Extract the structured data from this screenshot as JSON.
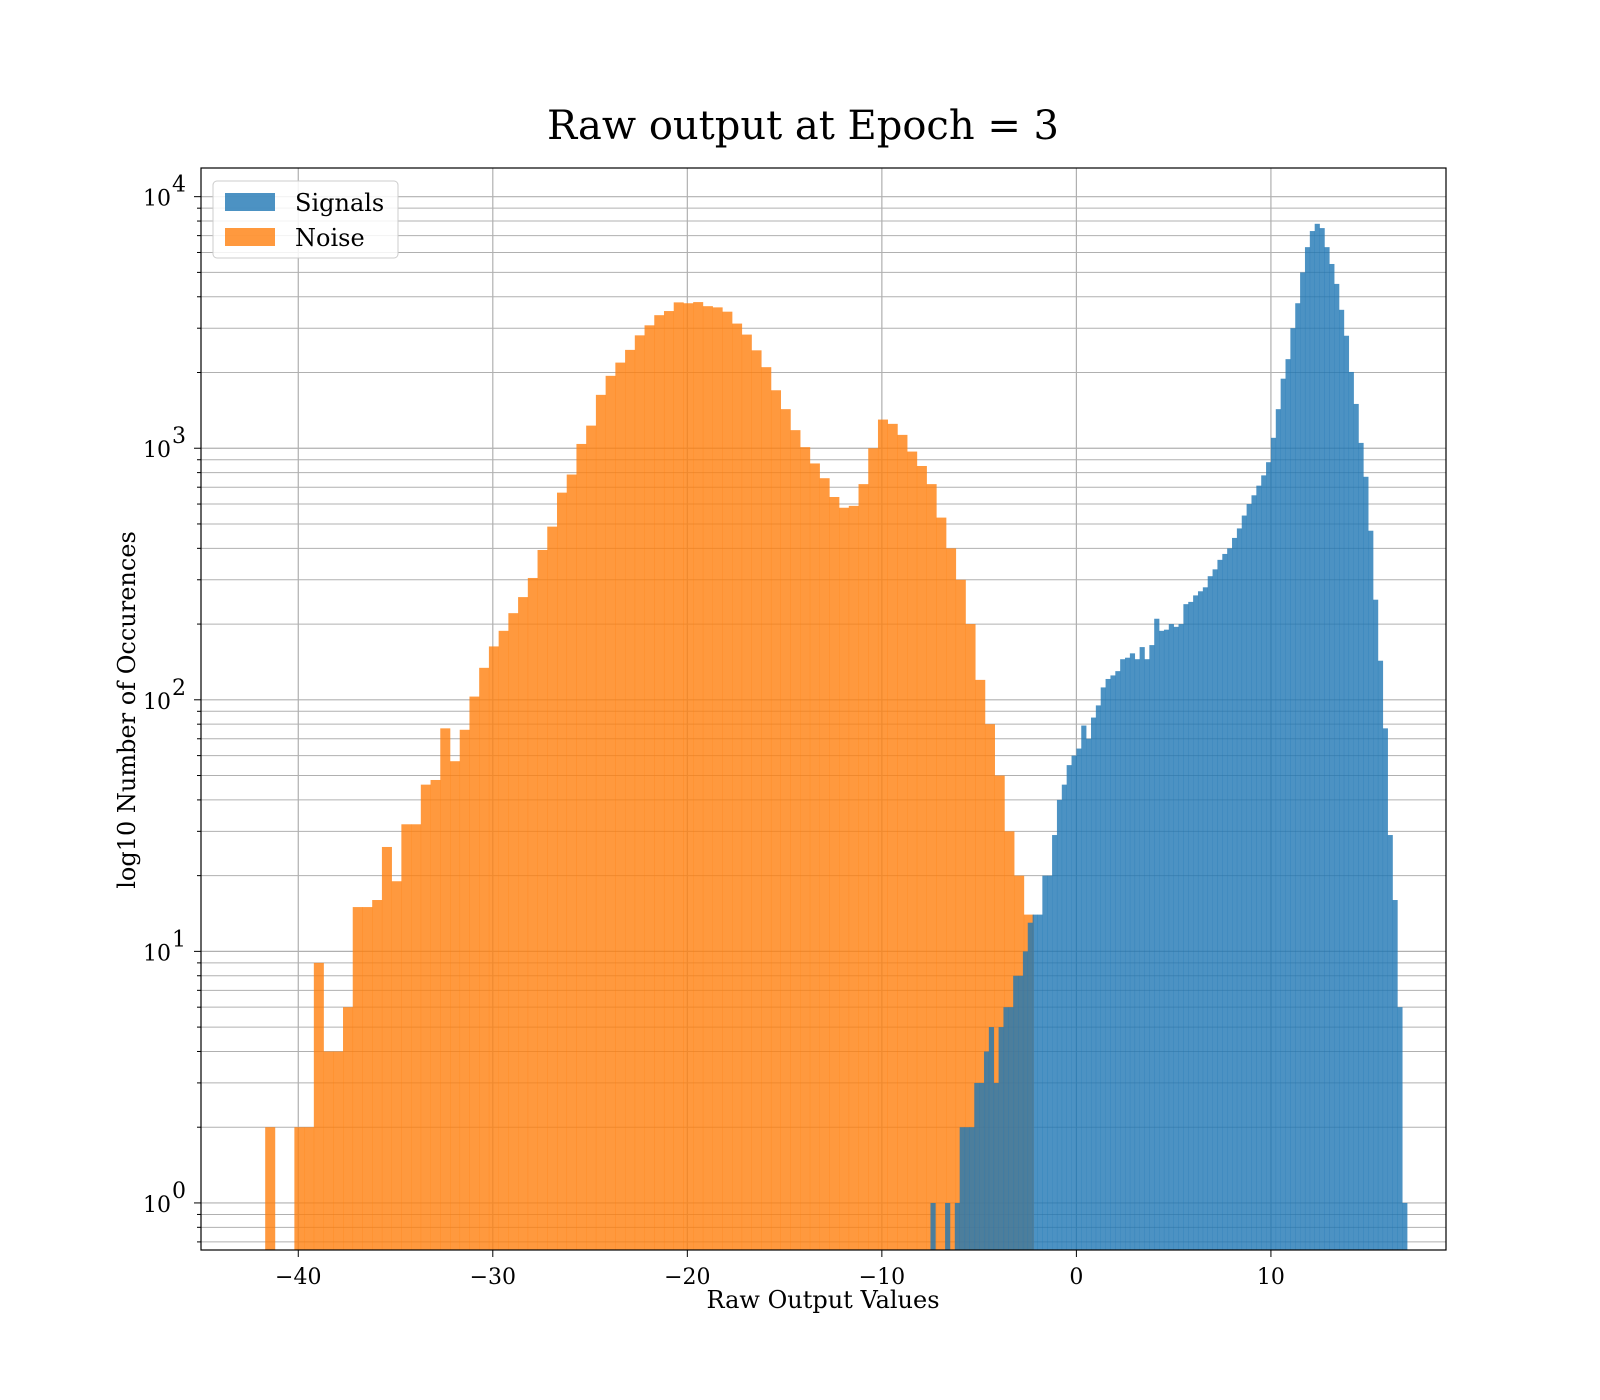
{
  "chart_data": {
    "type": "bar",
    "title": "Raw output at Epoch = 3",
    "xlabel": "Raw Output Values",
    "ylabel": "log10 Number of Occurences",
    "xlim": [
      -45,
      19
    ],
    "ylim": [
      0.65,
      13000
    ],
    "yscale": "log",
    "grid": true,
    "legend_position": "top-left",
    "xticks": [
      -40,
      -30,
      -20,
      -10,
      0,
      10
    ],
    "xtick_labels": [
      "−40",
      "−30",
      "−20",
      "−10",
      "0",
      "10"
    ],
    "yticks": [
      1,
      10,
      100,
      1000,
      10000
    ],
    "ytick_labels": [
      {
        "base": "10",
        "exp": "0"
      },
      {
        "base": "10",
        "exp": "1"
      },
      {
        "base": "10",
        "exp": "2"
      },
      {
        "base": "10",
        "exp": "3"
      },
      {
        "base": "10",
        "exp": "4"
      }
    ],
    "series": [
      {
        "name": "Noise",
        "color": "#ff7f0e",
        "opacity": 0.8,
        "bin_start": -41.7,
        "bin_width": 0.5,
        "values": [
          2,
          0,
          0,
          2,
          2,
          9,
          4,
          4,
          6,
          15,
          15,
          16,
          26,
          19,
          32,
          32,
          46,
          48,
          77,
          57,
          76,
          103,
          134,
          163,
          188,
          221,
          256,
          305,
          394,
          488,
          666,
          786,
          1040,
          1230,
          1630,
          1940,
          2190,
          2460,
          2810,
          3080,
          3380,
          3510,
          3800,
          3770,
          3810,
          3670,
          3630,
          3490,
          3130,
          2830,
          2450,
          2100,
          1700,
          1430,
          1180,
          1010,
          870,
          760,
          640,
          580,
          590,
          720,
          1000,
          1300,
          1250,
          1130,
          970,
          850,
          720,
          530,
          400,
          300,
          200,
          120,
          80,
          50,
          30,
          20,
          14
        ]
      },
      {
        "name": "Signals",
        "color": "#1f77b4",
        "opacity": 0.8,
        "bin_start": -7.5,
        "bin_width": 0.25,
        "values": [
          1,
          0,
          0,
          1,
          0,
          1,
          2,
          2,
          2,
          3,
          3,
          4,
          5,
          3,
          5,
          6,
          6,
          8,
          8,
          10,
          13,
          14,
          14,
          20,
          20,
          29,
          40,
          46,
          55,
          60,
          64,
          79,
          70,
          85,
          95,
          112,
          121,
          125,
          130,
          145,
          147,
          153,
          145,
          162,
          145,
          165,
          210,
          188,
          190,
          200,
          195,
          200,
          240,
          245,
          260,
          270,
          280,
          310,
          330,
          360,
          380,
          400,
          440,
          480,
          540,
          600,
          650,
          710,
          780,
          880,
          1100,
          1430,
          1890,
          2260,
          3000,
          3770,
          5000,
          6300,
          7300,
          7800,
          7500,
          6300,
          5400,
          4500,
          3550,
          2800,
          2010,
          1500,
          1050,
          770,
          470,
          250,
          143,
          77,
          29,
          16,
          6,
          1
        ]
      }
    ]
  }
}
